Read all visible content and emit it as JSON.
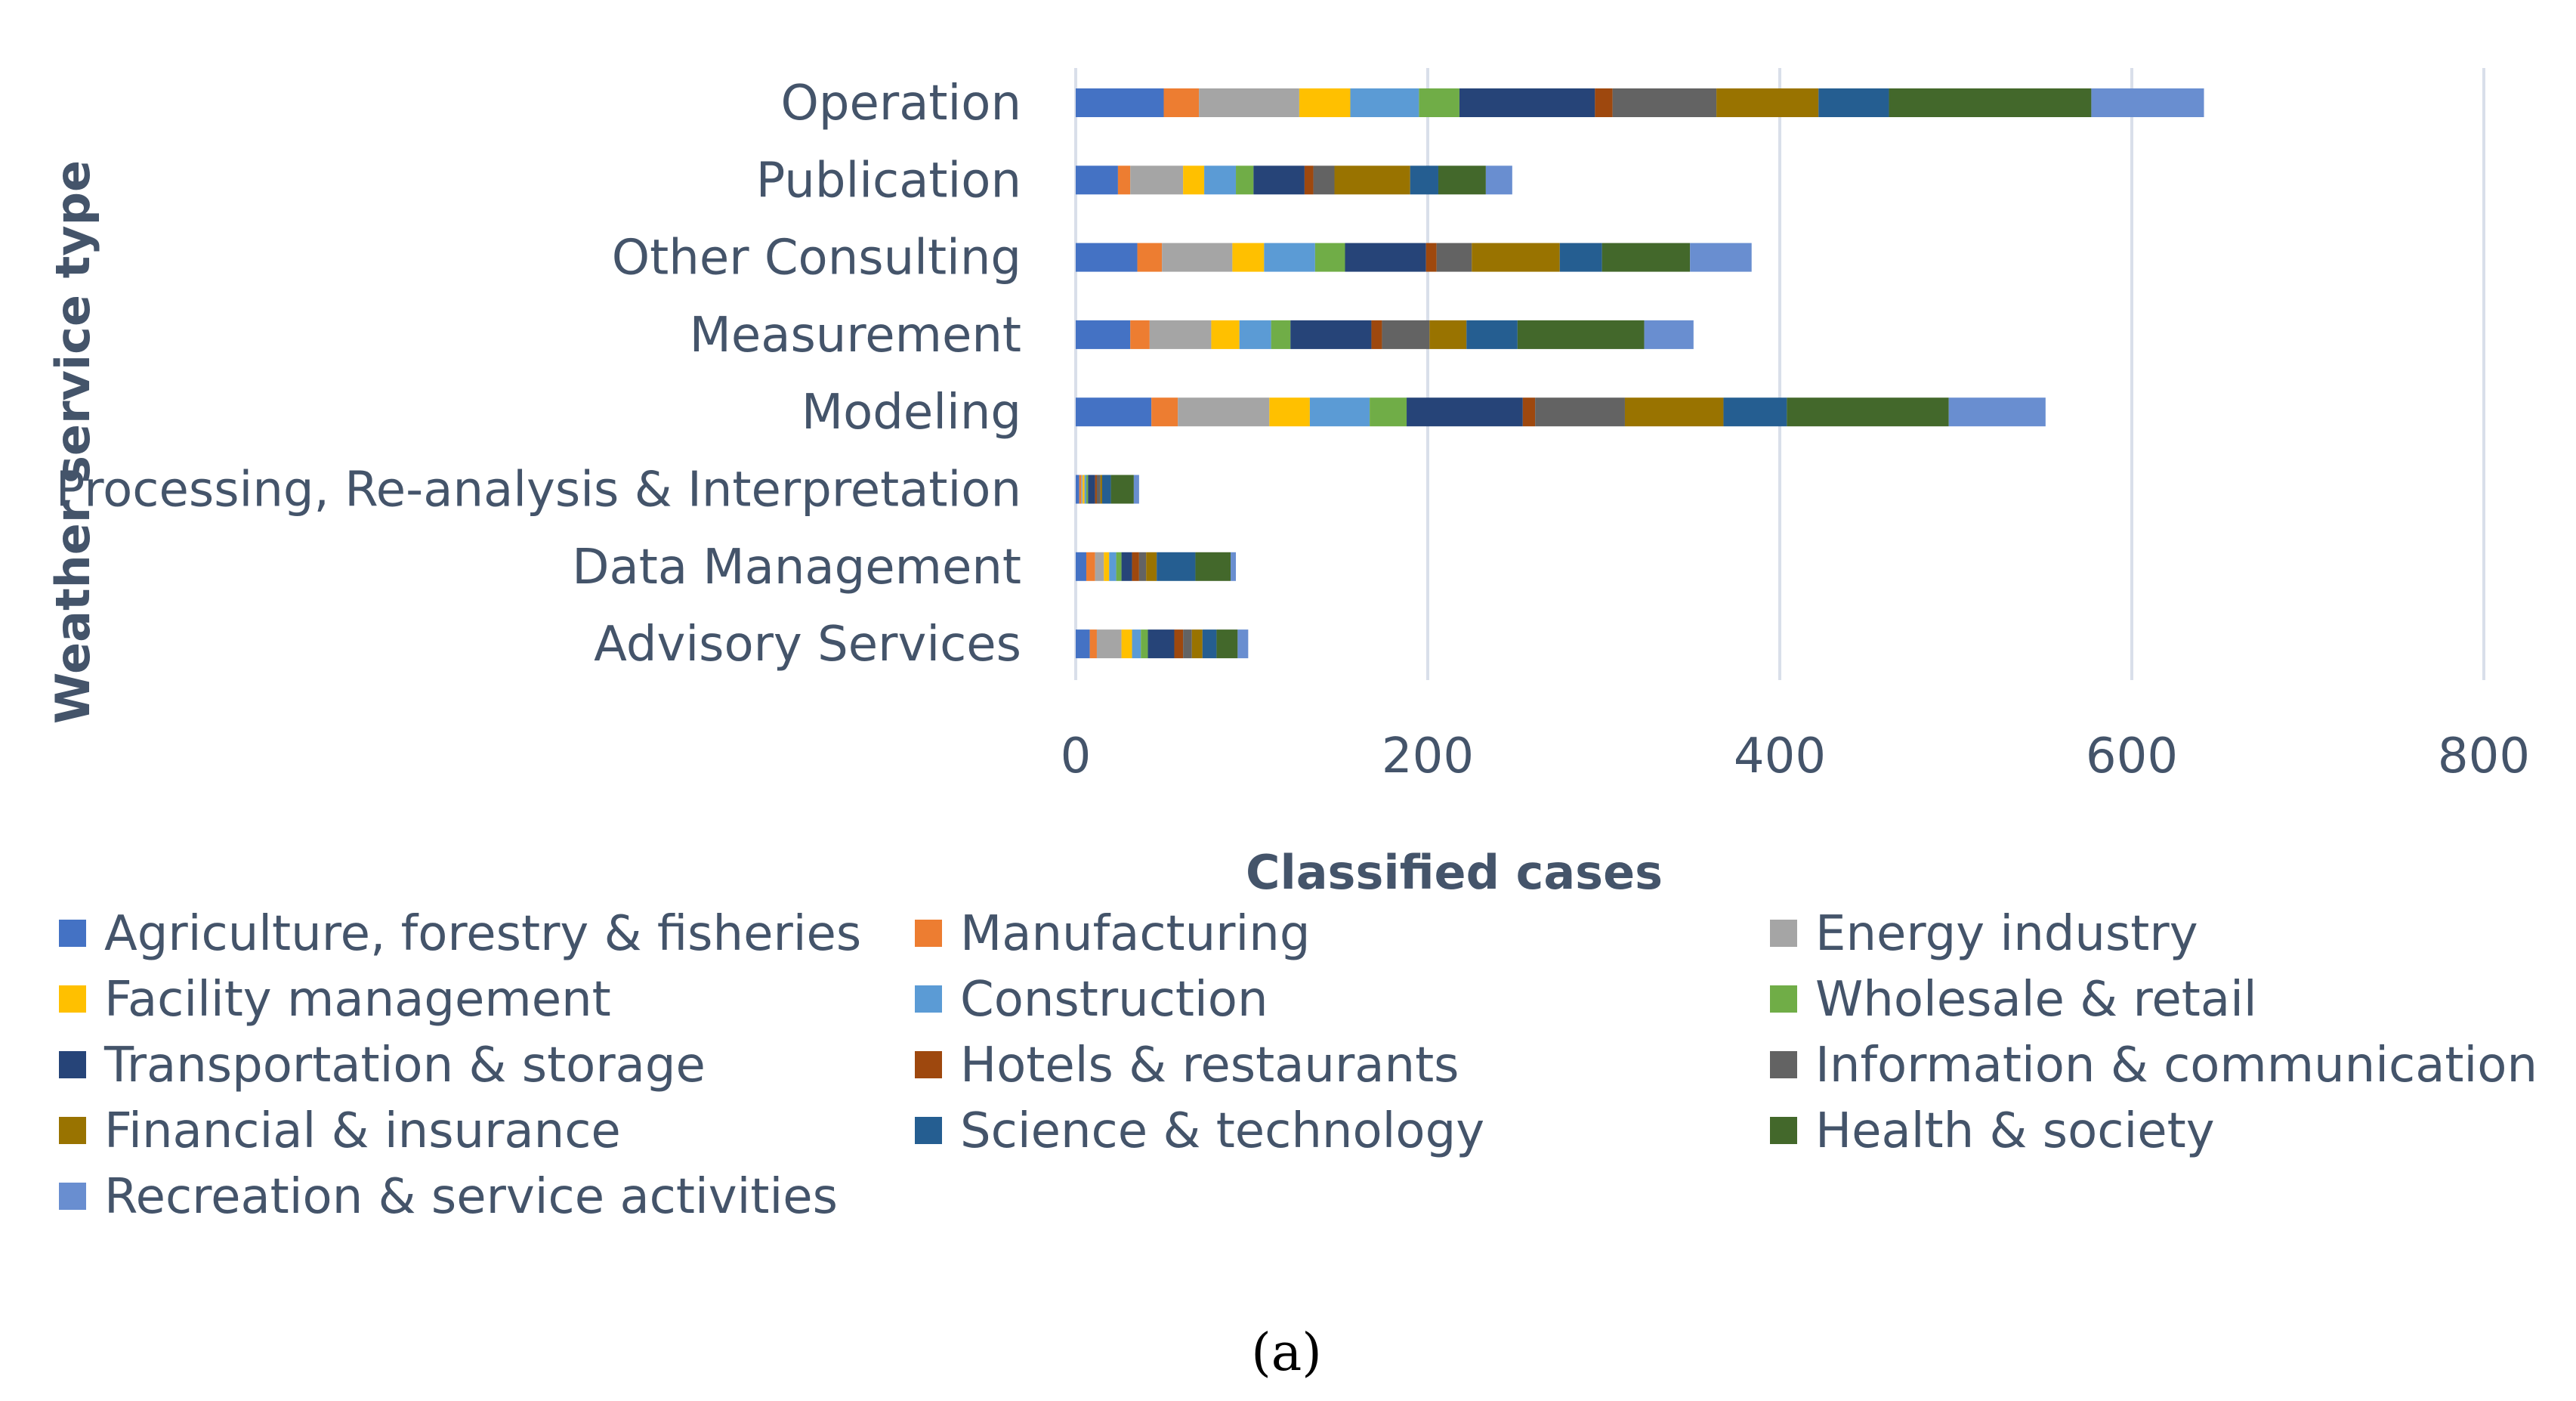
{
  "caption": "(a)",
  "chart_data": {
    "type": "bar",
    "orientation": "horizontal",
    "stacked": true,
    "title": "",
    "xlabel": "Classified cases",
    "ylabel": "Weather service type",
    "xlim": [
      0,
      800
    ],
    "xticks": [
      0,
      200,
      400,
      600,
      800
    ],
    "grid": true,
    "legend_position": "bottom",
    "categories": [
      "Operation",
      "Publication",
      "Other Consulting",
      "Measurement",
      "Modeling",
      "Processing, Re-analysis & Interpretation",
      "Data Management",
      "Advisory Services"
    ],
    "series": [
      {
        "name": "Agriculture, forestry & fisheries",
        "color": "#4472c4",
        "values": [
          50,
          24,
          35,
          31,
          43,
          2,
          6,
          8
        ]
      },
      {
        "name": "Manufacturing",
        "color": "#ed7d31",
        "values": [
          20,
          7,
          14,
          11,
          15,
          1,
          5,
          4
        ]
      },
      {
        "name": "Energy industry",
        "color": "#a5a5a5",
        "values": [
          57,
          30,
          40,
          35,
          52,
          1,
          5,
          14
        ]
      },
      {
        "name": "Facility management",
        "color": "#ffc000",
        "values": [
          29,
          12,
          18,
          16,
          23,
          1,
          3,
          6
        ]
      },
      {
        "name": "Construction",
        "color": "#5b9bd5",
        "values": [
          39,
          18,
          29,
          18,
          34,
          1,
          4,
          5
        ]
      },
      {
        "name": "Wholesale & retail",
        "color": "#70ad47",
        "values": [
          23,
          10,
          17,
          11,
          21,
          1,
          3,
          4
        ]
      },
      {
        "name": "Transportation & storage",
        "color": "#264478",
        "values": [
          77,
          29,
          46,
          46,
          66,
          4,
          6,
          15
        ]
      },
      {
        "name": "Hotels & restaurants",
        "color": "#9e480e",
        "values": [
          10,
          5,
          6,
          6,
          7,
          1,
          4,
          5
        ]
      },
      {
        "name": "Information & communication",
        "color": "#636363",
        "values": [
          59,
          12,
          20,
          27,
          51,
          2,
          4,
          5
        ]
      },
      {
        "name": "Financial & insurance",
        "color": "#997300",
        "values": [
          58,
          43,
          50,
          21,
          56,
          1,
          6,
          6
        ]
      },
      {
        "name": "Science & technology",
        "color": "#255e91",
        "values": [
          40,
          16,
          24,
          29,
          36,
          5,
          22,
          8
        ]
      },
      {
        "name": "Health & society",
        "color": "#43682b",
        "values": [
          115,
          27,
          50,
          72,
          92,
          13,
          20,
          12
        ]
      },
      {
        "name": "Recreation & service activities",
        "color": "#698ed0",
        "values": [
          64,
          15,
          35,
          28,
          55,
          3,
          3,
          6
        ]
      }
    ]
  }
}
